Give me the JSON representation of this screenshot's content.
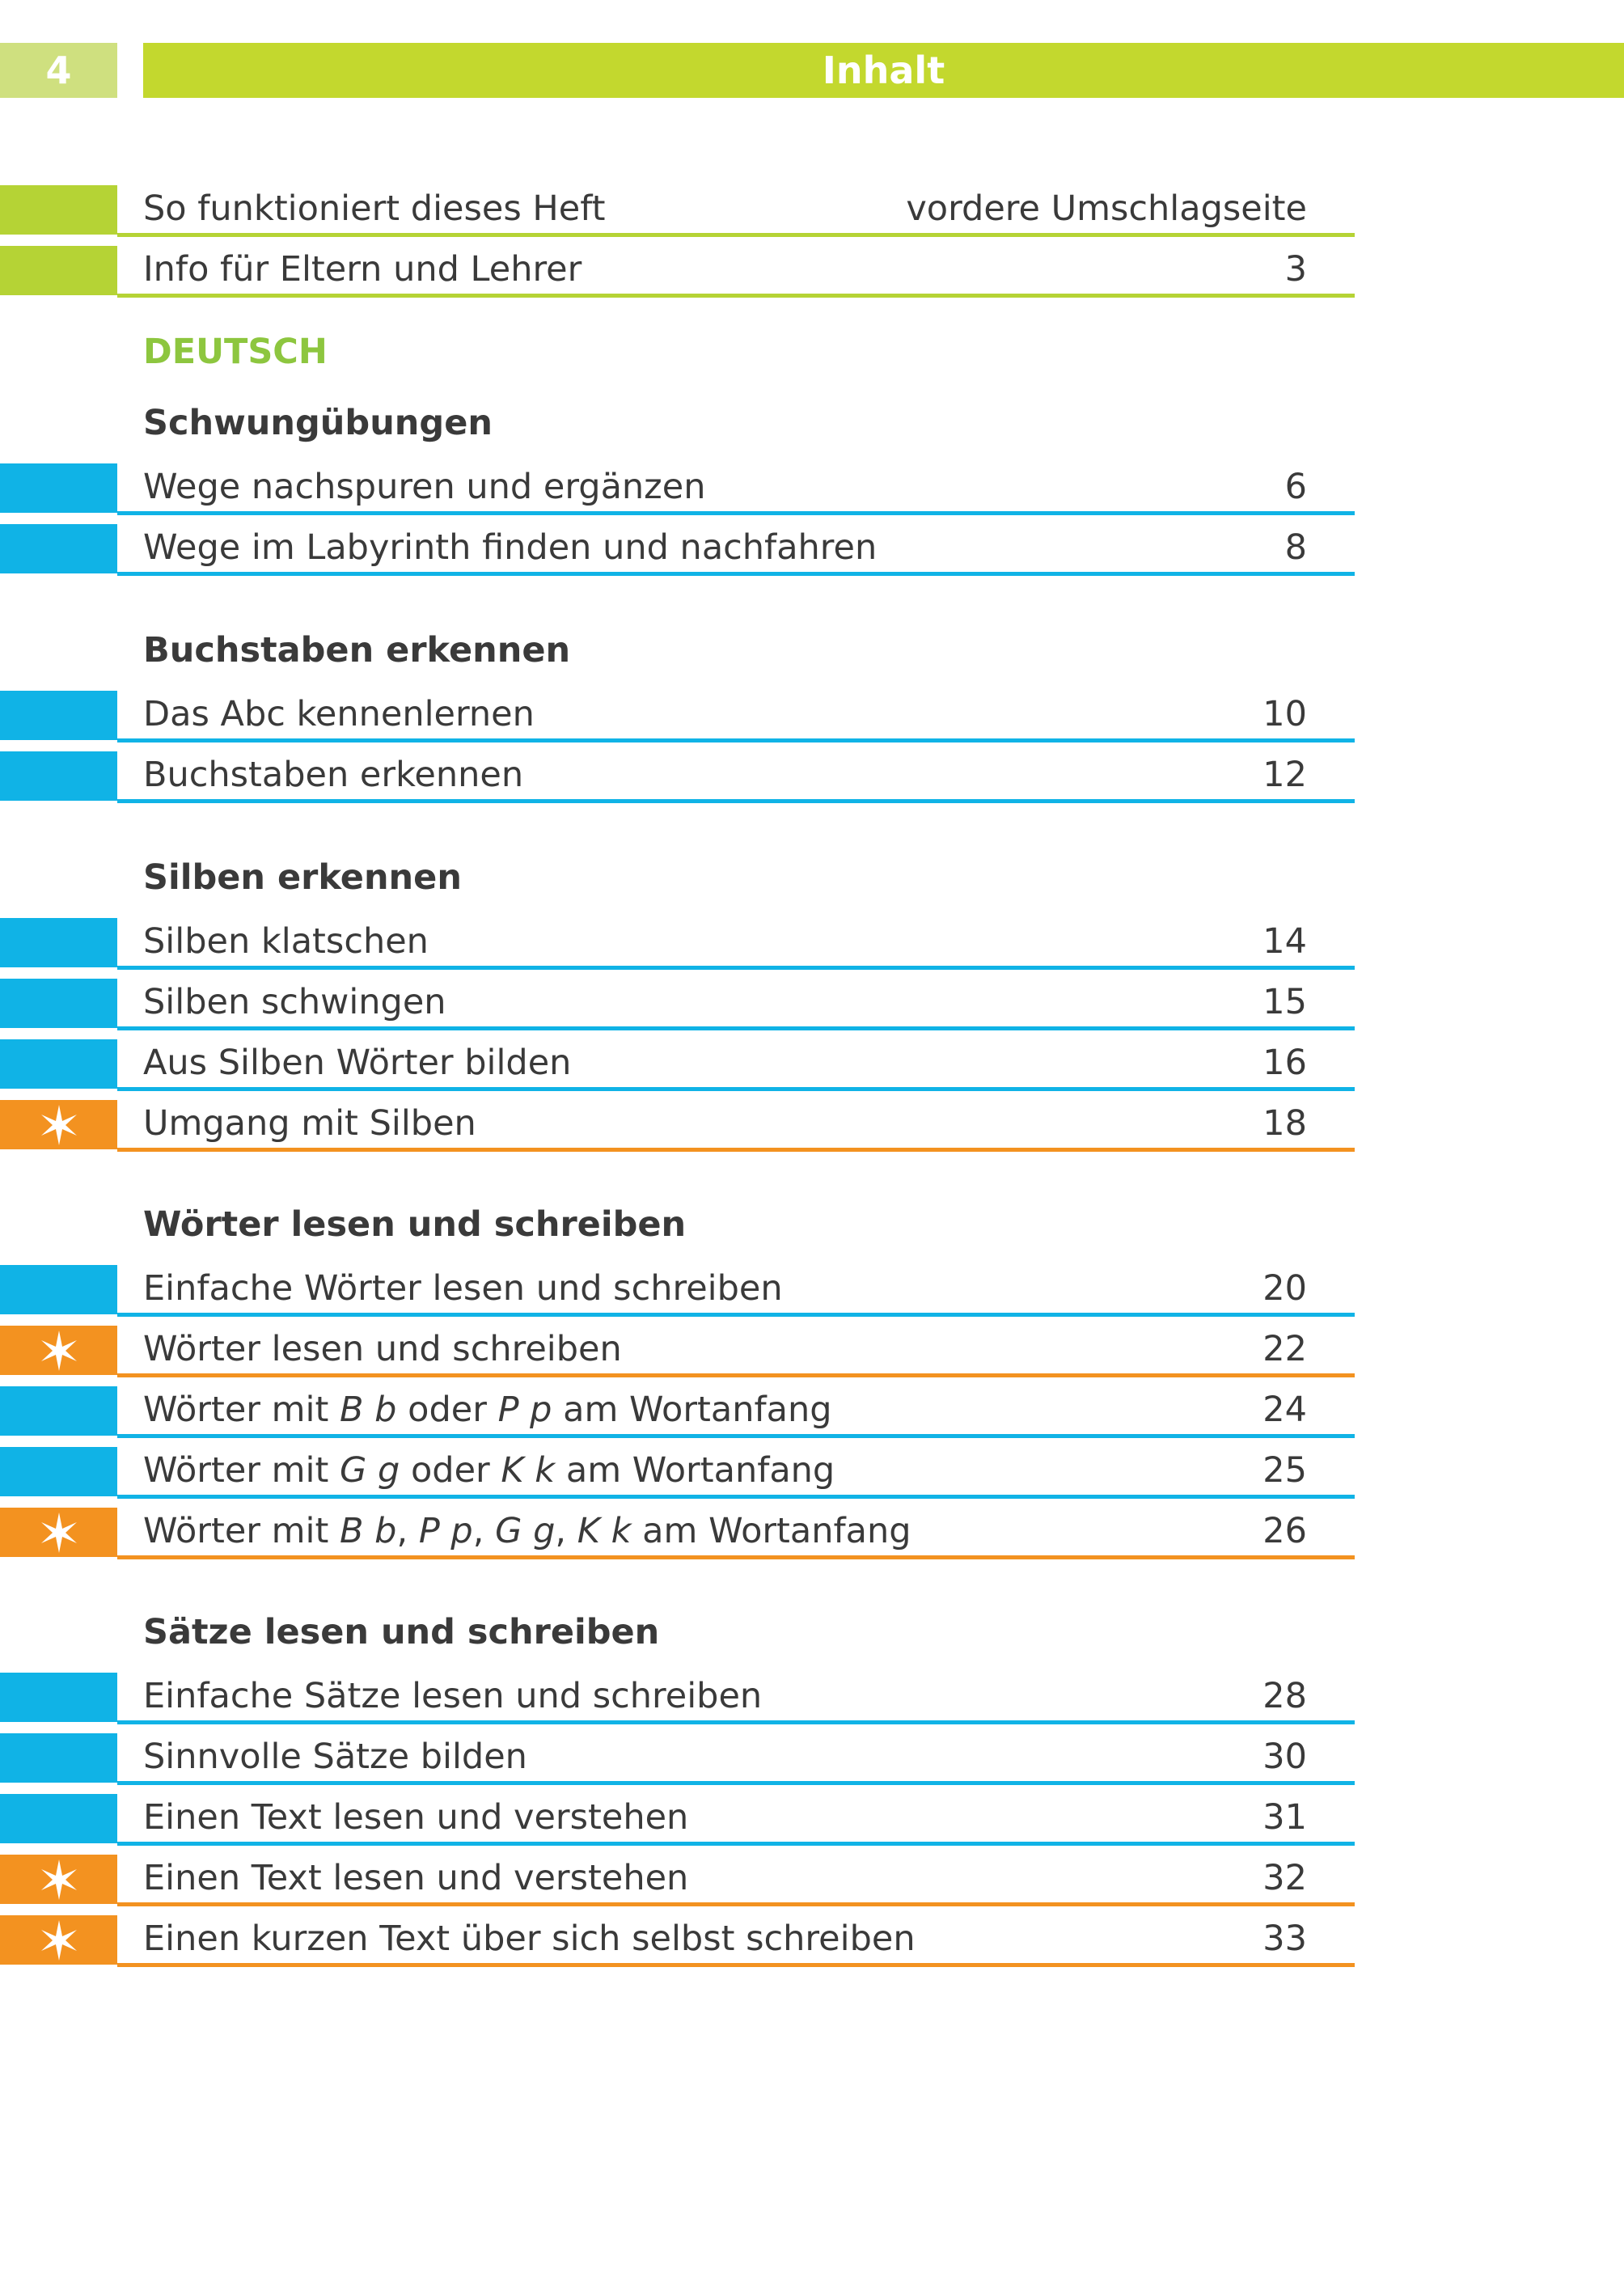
{
  "header": {
    "page_number": "4",
    "title": "Inhalt"
  },
  "front": [
    {
      "label": "So funktioniert dieses Heft",
      "page": "vordere Umschlagseite"
    },
    {
      "label": "Info für Eltern und Lehrer",
      "page": "3"
    }
  ],
  "subject": "DEUTSCH",
  "sections": [
    {
      "heading": "Schwungübungen",
      "items": [
        {
          "label": "Wege nachspuren und ergänzen",
          "page": "6"
        },
        {
          "label": "Wege im Labyrinth finden und nachfahren",
          "page": "8"
        }
      ]
    },
    {
      "heading": "Buchstaben erkennen",
      "items": [
        {
          "label": "Das Abc kennenlernen",
          "page": "10"
        },
        {
          "label": "Buchstaben erkennen",
          "page": "12"
        }
      ]
    },
    {
      "heading": "Silben erkennen",
      "items": [
        {
          "label": "Silben klatschen",
          "page": "14"
        },
        {
          "label": "Silben schwingen",
          "page": "15"
        },
        {
          "label": "Aus Silben Wörter bilden",
          "page": "16"
        },
        {
          "label": "Umgang mit Silben",
          "page": "18"
        }
      ]
    },
    {
      "heading": "Wörter lesen und schreiben",
      "items": [
        {
          "label": "Einfache Wörter lesen und schreiben",
          "page": "20"
        },
        {
          "label": "Wörter lesen und schreiben",
          "page": "22"
        },
        {
          "label_parts": [
            "Wörter mit ",
            "B b",
            " oder ",
            "P p",
            " am Wortanfang"
          ],
          "page": "24"
        },
        {
          "label_parts": [
            "Wörter mit ",
            "G g",
            " oder ",
            "K k",
            " am Wortanfang"
          ],
          "page": "25"
        },
        {
          "label_parts": [
            "Wörter mit ",
            "B b",
            ", ",
            "P p",
            ", ",
            "G g",
            ", ",
            "K k",
            " am Wortanfang"
          ],
          "page": "26"
        }
      ]
    },
    {
      "heading": "Sätze lesen und schreiben",
      "items": [
        {
          "label": "Einfache Sätze lesen und schreiben",
          "page": "28"
        },
        {
          "label": "Sinnvolle Sätze bilden",
          "page": "30"
        },
        {
          "label": "Einen Text lesen und verstehen",
          "page": "31"
        },
        {
          "label": "Einen Text lesen und verstehen",
          "page": "32"
        },
        {
          "label": "Einen kurzen Text über sich selbst schreiben",
          "page": "33"
        }
      ]
    }
  ],
  "marker_icon": "star-icon",
  "colors": {
    "green": "#b5d335",
    "blue": "#10b3e6",
    "orange": "#f39220",
    "subject": "#8dc63f"
  }
}
